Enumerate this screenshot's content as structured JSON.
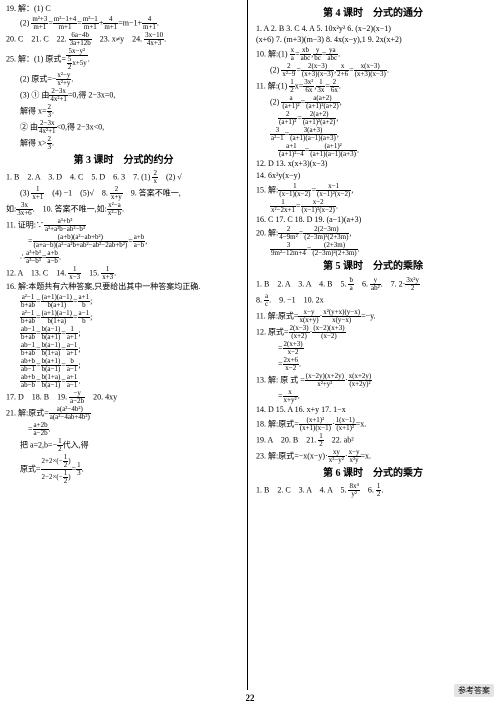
{
  "page_number": "22",
  "watermark": "参考答案",
  "left": {
    "lines": [
      {
        "i": 0,
        "t": "19. 解：(1) C"
      },
      {
        "i": 1,
        "t": "(2) m²+3/m+1 = m²−1+4/m+1 = m²−1/m+1 + 4/m+1 = m−1+ 4/m+1.",
        "cls": "indent"
      },
      {
        "i": 2,
        "t": "20. C  21. C  22.  6a−4b/3a+12b   23. x≠y   24.  3x−10/4x+3 ."
      },
      {
        "i": 3,
        "t": "25. 解：(1) 原式= 5x−y²/( 5/2 x+5y) ."
      },
      {
        "i": 4,
        "t": "(2) 原式=− x²−y/x²+y .",
        "cls": "indent"
      },
      {
        "i": 5,
        "t": "(3) ① 由 2−3x/4x²+1 =0,得 2−3x=0,",
        "cls": "indent"
      },
      {
        "i": 6,
        "t": "解得 x= 2/3 .",
        "cls": "indent"
      },
      {
        "i": 7,
        "t": "② 由 2−3x/4x²+1 <0,得 2−3x<0,",
        "cls": "indent"
      },
      {
        "i": 8,
        "t": "解得 x> 2/3 .",
        "cls": "indent"
      }
    ],
    "title3": "第 3 课时　分式的约分",
    "lines3": [
      {
        "t": "1. B  2. A  3. D  4. C  5. D  6. 3  7. (1) 2/x   (2) √"
      },
      {
        "t": "(3) 1/x+1   (4) −1  (5)√   8. 2/x+y   9. 答案不唯一,",
        "cls": "indent"
      },
      {
        "t": "如: 3x/3x+6 .  10. 答案不唯一,如: x²−a/x²−b ."
      },
      {
        "t": "11. 证明:∵ a³+b³/a³+a²b−ab²−b³"
      },
      {
        "t": "= (a+b)(a²−ab+b²)/(a+a−b)(a²−a²b+ab²−ab−2ab+b²) = a+b/a−b ,",
        "cls": "indent2"
      },
      {
        "t": "∴ a³+b³/a³−b³ = a+b/a−b .",
        "cls": "indent"
      },
      {
        "t": "12. A  13. C  14. 1/x−3   15. 1/x+3 ."
      },
      {
        "t": "16. 解:本题共有六种答案,只要给出其中一种答案均正确."
      },
      {
        "t": "a²−1/b+ab = (a+1)(a−1)/b(a+1) = a+1/b ;",
        "cls": "indent"
      },
      {
        "t": "a²−1/b+ab = (a+1)(a−1)/b(1+a) = a−1/b ;",
        "cls": "indent"
      },
      {
        "t": "ab−1/b+ab = b(a−1)/b(a+1) = a+1 ;",
        "cls": "indent"
      },
      {
        "t": "ab−1/b+ab = b(a−1)/b(1+a) = a−1/a+1 ;",
        "cls": "indent"
      },
      {
        "t": "ab+b/ab−1 = b(a+1)/b(a−1) = b/a−1 ;",
        "cls": "indent"
      },
      {
        "t": "ab+b/ab−b = b(1+a)/b(a−1) = a+1/a−1 .",
        "cls": "indent"
      },
      {
        "t": "17. D  18. B  19. −y/a−2b   20. 4xy"
      },
      {
        "t": "21. 解:原式= a(a²−4b²)/a(a²−4ab+4b²)"
      },
      {
        "t": "= a+2b/a−2b .",
        "cls": "indent2"
      },
      {
        "t": "把 a=2,b=− 1/2 代入,得",
        "cls": "indent"
      },
      {
        "t": "原式= (2+2×(−1/2)) / (2−2×(−1/2)) = 1/3 .",
        "cls": "indent"
      }
    ]
  },
  "right": {
    "title4": "第 4 课时　分式的通分",
    "lines4": [
      {
        "t": "1. A  2. B  3. C  4. A  5. 10x²y²   6. (x−2)(x−1)"
      },
      {
        "t": "(x+6)   7. (m+3)(m−3)   8. 4x(x−y),1   9. 2x(x+2)"
      },
      {
        "t": "10. 解:(1) x/a = xb/abc , bc = ya/abc ."
      },
      {
        "t": "(2) 2/x²−9 = 2(x−3)/(x+3)(x−3) , x/2+6 = x(x−3)/(x+3)(x−3) .",
        "cls": "indent"
      },
      {
        "t": "11. 解:(1) 1/2 x= 3x²/6x , 1/3x = 2/6x ."
      },
      {
        "t": "(2) a/(a+1)² = a(a+2)/(a+1)²(a+2) ,",
        "cls": "indent"
      },
      {
        "t": "2/(a+1)² = 2(a+2)/(a+1)²(a+2) ,",
        "cls": "indent2"
      },
      {
        "t": "3/a²−1 = 3(a+3)/(a+1)(a−1)(a+3) ,",
        "cls": "indent"
      },
      {
        "t": "a+1/(a+1)²−4 = (a+1)²/(a+1)(a−1)(a+3) .",
        "cls": "indent2"
      },
      {
        "t": "12. D  13. x(x+3)(x−3)"
      },
      {
        "t": "14. 6x²y(x−y)"
      },
      {
        "t": "15. 解: 1/(x−1)(x−2) = x−1/(x−1)²(x−2) ,"
      },
      {
        "t": "1/x²−2x+1 = x−2/(x−1)²(x−2) .",
        "cls": "indent"
      },
      {
        "t": "16. C  17. C  18. D  19. (a−1)(a+3)"
      },
      {
        "t": "20. 解: 2/4−9m² = 2(2−3m)/(2−3m)²(2+3m) ,"
      },
      {
        "t": "3/9m²−12m+4 = (2+3m)/(2−3m)²(2+3m) .",
        "cls": "indent"
      }
    ],
    "title5": "第 5 课时　分式的乘除",
    "lines5": [
      {
        "t": "1. B  2. A  3. A  4. B  5. b/a   6. y/ab² .  7. 2· 3x²y/2 "
      },
      {
        "t": "8. a/c .  9. −1  10. 2x"
      },
      {
        "t": "11. 解:原式= x−y/x(x+y) · x²(y+x)(y−x)/x(y−x) =−y."
      },
      {
        "t": "12. 原式= 2(x−3)/(x+2) ·(x−2)(x+3)/(x−2)"
      },
      {
        "t": "= 2(x+3)/x−2",
        "cls": "indent2"
      },
      {
        "t": "= 2x+6/x−2 .",
        "cls": "indent2"
      },
      {
        "t": "13. 解: 原 式 = (x−2y)(x+2y)/x²+y² · x(x+2y)/(x+2y)²"
      },
      {
        "t": "= x/x+y² .",
        "cls": "indent2"
      },
      {
        "t": "14. D  15. A  16. x+y  17. 1−x"
      },
      {
        "t": "18. 解:原式= (x+1)²/(x+1)(x−1) · 1(x−1)/(x+1)² =x."
      },
      {
        "t": "19. A  20. B  21. 1/2   22. ab²"
      },
      {
        "t": "23. 解:原式=−x(x−y)· xy/x²−y² · x−y/x²y =x."
      }
    ],
    "title6": "第 6 课时　分式的乘方",
    "lines6": [
      {
        "t": "1. B  2. C  3. A  4. A  5. 8x⁴/y²   6. 1/2 ."
      }
    ]
  }
}
